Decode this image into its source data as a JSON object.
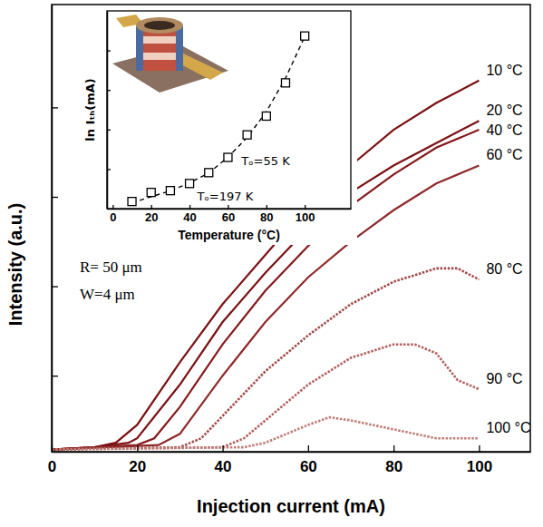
{
  "chart_data": [
    {
      "type": "line",
      "x_label": "Injection current (mA)",
      "y_label": "Intensity (a.u.)",
      "xlim": [
        0,
        112
      ],
      "ylim": [
        0,
        100
      ],
      "xticks": [
        0,
        20,
        40,
        60,
        80,
        100
      ],
      "yticks": [
        17,
        37,
        57,
        77
      ],
      "tick_labels": "x",
      "annotations": [
        "R= 50 μm",
        "W=4 μm"
      ],
      "series": [
        {
          "name": "10 °C",
          "color": "#7b1113",
          "line_style": "solid",
          "x": [
            0,
            10,
            15,
            20,
            30,
            40,
            50,
            60,
            70,
            80,
            90,
            100
          ],
          "values": [
            0.5,
            1,
            2,
            6,
            20,
            33,
            44,
            55,
            64,
            72,
            78,
            83
          ]
        },
        {
          "name": "20 °C",
          "color": "#7b1113",
          "line_style": "solid",
          "x": [
            0,
            10,
            18,
            20,
            30,
            40,
            50,
            60,
            70,
            80,
            90,
            100
          ],
          "values": [
            0.5,
            1,
            2,
            3,
            15,
            29,
            40,
            50,
            58,
            64,
            69,
            74
          ]
        },
        {
          "name": "40 °C",
          "color": "#85191b",
          "line_style": "solid",
          "x": [
            0,
            20,
            24,
            30,
            40,
            50,
            60,
            70,
            80,
            90,
            100
          ],
          "values": [
            0.5,
            1.5,
            3,
            10,
            24,
            36,
            46,
            55,
            62,
            68,
            72
          ]
        },
        {
          "name": "60 °C",
          "color": "#8e2a2a",
          "line_style": "solid",
          "x": [
            0,
            25,
            30,
            40,
            50,
            60,
            70,
            80,
            90,
            100
          ],
          "values": [
            0.5,
            1.5,
            4,
            17,
            29,
            39,
            47,
            54,
            60,
            64
          ]
        },
        {
          "name": "80 °C",
          "color": "#a04a48",
          "line_style": "dotted",
          "x": [
            0,
            30,
            35,
            40,
            50,
            60,
            70,
            80,
            90,
            95,
            100
          ],
          "values": [
            0.5,
            1,
            3,
            8,
            18,
            26,
            33,
            38,
            41,
            41,
            38.5
          ]
        },
        {
          "name": "90 °C",
          "color": "#b0605c",
          "line_style": "dotted",
          "x": [
            0,
            40,
            45,
            50,
            60,
            70,
            80,
            85,
            90,
            95,
            100
          ],
          "values": [
            0.5,
            1,
            3,
            7,
            15,
            21,
            24,
            24,
            22,
            16,
            14
          ]
        },
        {
          "name": "100 °C",
          "color": "#c07c76",
          "line_style": "dotted",
          "x": [
            0,
            45,
            50,
            60,
            65,
            70,
            80,
            90,
            100
          ],
          "values": [
            0.5,
            1,
            2,
            6,
            7.7,
            7,
            5,
            3,
            3
          ]
        }
      ]
    },
    {
      "type": "line",
      "x_label": "Temperature (°C)",
      "y_label": "ln Iₜₕ(mA)",
      "xlim": [
        -3,
        124
      ],
      "ylim": [
        0,
        100
      ],
      "xticks": [
        0,
        20,
        40,
        60,
        80,
        100
      ],
      "yticks": [
        20,
        40,
        60,
        80
      ],
      "tick_labels": "x",
      "annotations": [
        "Tₒ=55 K",
        "Tₒ=197 K"
      ],
      "series": [
        {
          "type": "scatter",
          "marker": "square",
          "color": "#000000",
          "x": [
            10,
            20,
            30,
            40,
            50,
            60,
            70,
            80,
            90,
            100
          ],
          "values": [
            3.6,
            8.2,
            9.1,
            12.7,
            18.2,
            25.9,
            37.3,
            46.8,
            63.6,
            87.3
          ]
        },
        {
          "type": "line",
          "line_style": "dashed",
          "color": "#000000",
          "x": [
            10,
            20,
            30,
            40,
            50,
            60,
            70,
            80,
            90,
            100
          ],
          "values": [
            3,
            6,
            9,
            13,
            18,
            26,
            36,
            49,
            66,
            87
          ]
        }
      ]
    }
  ]
}
